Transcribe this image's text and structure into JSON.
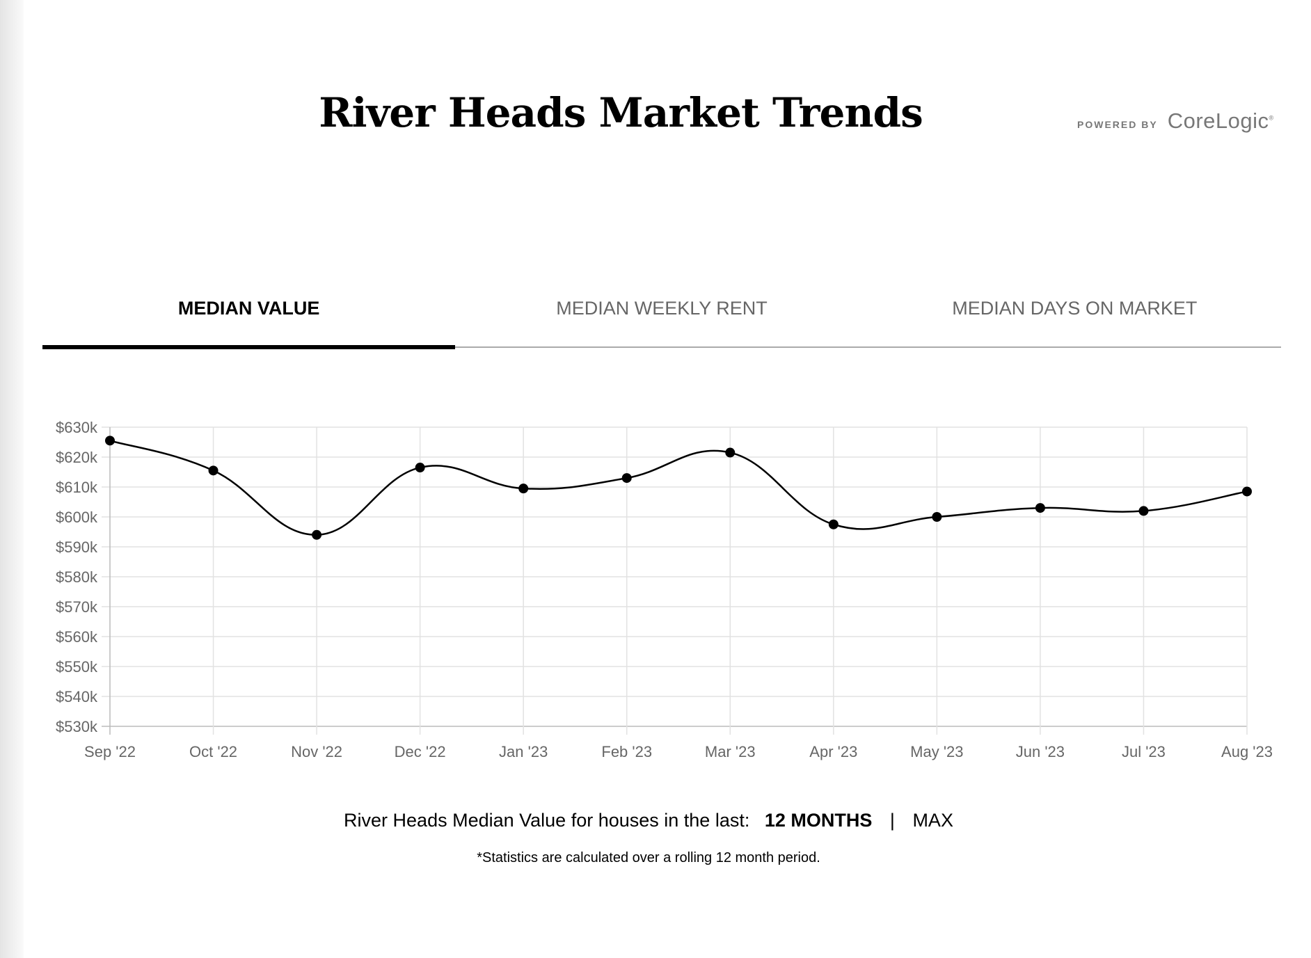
{
  "header": {
    "title": "River Heads Market Trends",
    "powered_by": "POWERED BY",
    "brand": "CoreLogic",
    "brand_mark": "®"
  },
  "tabs": [
    {
      "label": "MEDIAN VALUE",
      "active": true
    },
    {
      "label": "MEDIAN WEEKLY RENT",
      "active": false
    },
    {
      "label": "MEDIAN DAYS ON MARKET",
      "active": false
    }
  ],
  "footer": {
    "caption": "River Heads Median Value for houses in the last:",
    "option_12": "12 MONTHS",
    "separator": "|",
    "option_max": "MAX",
    "note": "*Statistics are calculated over a rolling 12 month period."
  },
  "chart_data": {
    "type": "line",
    "title": "",
    "xlabel": "",
    "ylabel": "",
    "categories": [
      "Sep '22",
      "Oct '22",
      "Nov '22",
      "Dec '22",
      "Jan '23",
      "Feb '23",
      "Mar '23",
      "Apr '23",
      "May '23",
      "Jun '23",
      "Jul '23",
      "Aug '23"
    ],
    "series": [
      {
        "name": "Median Value",
        "values": [
          625.5,
          615.5,
          594,
          616.5,
          609.5,
          613,
          621.5,
          597.5,
          600,
          603,
          602,
          608.5
        ]
      }
    ],
    "value_unit": "thousands AUD",
    "ylim": [
      530,
      630
    ],
    "yticks": [
      530,
      540,
      550,
      560,
      570,
      580,
      590,
      600,
      610,
      620,
      630
    ],
    "ytick_labels": [
      "$530k",
      "$540k",
      "$550k",
      "$560k",
      "$570k",
      "$580k",
      "$590k",
      "$600k",
      "$610k",
      "$620k",
      "$630k"
    ],
    "grid": true,
    "legend": "none",
    "line_color": "#000000"
  }
}
